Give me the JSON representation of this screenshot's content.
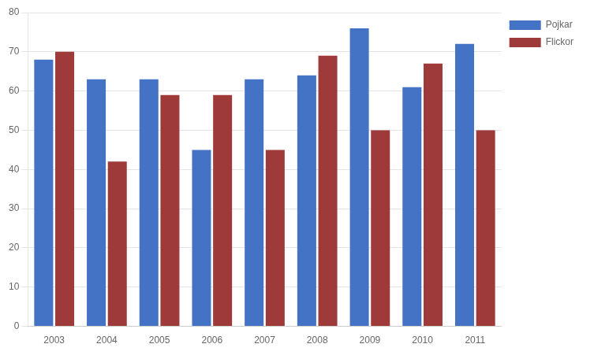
{
  "chart_data": {
    "type": "bar",
    "categories": [
      "2003",
      "2004",
      "2005",
      "2006",
      "2007",
      "2008",
      "2009",
      "2010",
      "2011"
    ],
    "series": [
      {
        "name": "Pojkar",
        "color": "#4472C4",
        "values": [
          68,
          63,
          63,
          45,
          63,
          64,
          76,
          61,
          72
        ]
      },
      {
        "name": "Flickor",
        "color": "#9E3A3A",
        "values": [
          70,
          42,
          59,
          59,
          45,
          69,
          50,
          67,
          50
        ]
      }
    ],
    "ylim": [
      0,
      80
    ],
    "yticks": [
      0,
      10,
      20,
      30,
      40,
      50,
      60,
      70,
      80
    ],
    "grid": true,
    "legend": "right"
  }
}
